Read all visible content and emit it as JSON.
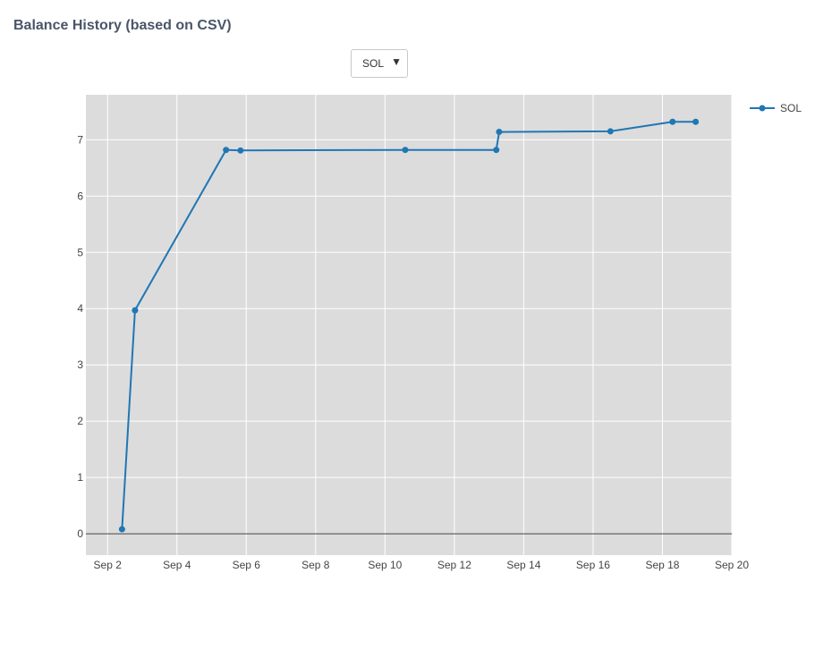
{
  "header": {
    "title": "Balance History (based on CSV)"
  },
  "selector": {
    "selected": "SOL",
    "arrow_icon": "triangle-down-icon"
  },
  "chart_data": {
    "type": "line",
    "title": "",
    "xlabel": "",
    "ylabel": "",
    "x_ticks": [
      "Sep 2",
      "Sep 4",
      "Sep 6",
      "Sep 8",
      "Sep 10",
      "Sep 12",
      "Sep 14",
      "Sep 16",
      "Sep 18",
      "Sep 20"
    ],
    "y_ticks": [
      0,
      1,
      2,
      3,
      4,
      5,
      6,
      7
    ],
    "xlim": [
      "2023-09-01T09:00",
      "2023-09-20T00:00"
    ],
    "ylim": [
      -0.38,
      7.8
    ],
    "grid": true,
    "legend": "top-right",
    "colors": {
      "series": "#1f77b4",
      "plot_bg": "#dcdcdc",
      "grid": "#ffffff",
      "zero_line": "#444444"
    },
    "series": [
      {
        "name": "SOL",
        "points": [
          {
            "x": "2023-09-02T10:00",
            "y": 0.08
          },
          {
            "x": "2023-09-02T19:00",
            "y": 3.97
          },
          {
            "x": "2023-09-05T10:00",
            "y": 6.82
          },
          {
            "x": "2023-09-05T20:00",
            "y": 6.81
          },
          {
            "x": "2023-09-10T14:00",
            "y": 6.82
          },
          {
            "x": "2023-09-13T05:00",
            "y": 6.82
          },
          {
            "x": "2023-09-13T07:00",
            "y": 7.14
          },
          {
            "x": "2023-09-16T12:00",
            "y": 7.15
          },
          {
            "x": "2023-09-18T07:00",
            "y": 7.32
          },
          {
            "x": "2023-09-18T23:00",
            "y": 7.32
          }
        ]
      }
    ]
  }
}
